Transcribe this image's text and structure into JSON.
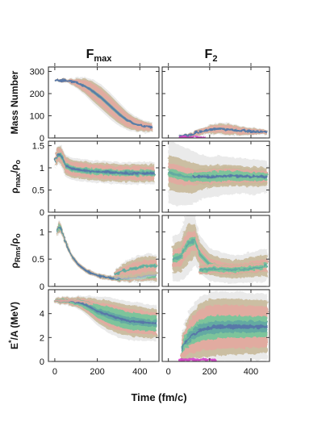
{
  "chart_data": {
    "type": "heatmap",
    "column_titles": [
      "F",
      "F"
    ],
    "column_title_subscripts": [
      "max",
      "2"
    ],
    "xlabel": "Time (fm/c)",
    "x_ticks": [
      "0",
      "200",
      "400"
    ],
    "x_tick_values": [
      0,
      200,
      400
    ],
    "xlim": [
      -30,
      490
    ],
    "grid": false,
    "colors": {
      "low": "#d9d9d9",
      "tan": "#c8b99a",
      "pink": "#e3a9a0",
      "green": "#72c79a",
      "teal": "#62a7a3",
      "blue": "#5872a8",
      "magenta": "#d23fc8",
      "frame": "#222222"
    },
    "rows": [
      {
        "ylabel": "Mass Number",
        "ylabel_parts": [
          {
            "t": "Mass Number",
            "s": ""
          }
        ],
        "y_ticks": [
          "0",
          "100",
          "200",
          "300"
        ],
        "y_tick_values": [
          0,
          100,
          200,
          300
        ],
        "ylim": [
          0,
          320
        ],
        "panels": [
          {
            "column": "Fmax",
            "bands": [
              {
                "x": [
                  0,
                  60,
                  100,
                  140,
                  180,
                  220,
                  260,
                  300,
                  340,
                  380,
                  420,
                  460
                ],
                "y": [
                  260,
                  258,
                  250,
                  235,
                  210,
                  180,
                  145,
                  110,
                  80,
                  62,
                  52,
                  48
                ],
                "w": [
                  4,
                  10,
                  25,
                  40,
                  55,
                  60,
                  60,
                  55,
                  45,
                  35,
                  28,
                  22
                ],
                "layers": [
                  1,
                  1,
                  1,
                  0,
                  0.55,
                  0.25
                ]
              }
            ]
          },
          {
            "column": "F2",
            "bands": [
              {
                "x": [
                  50,
                  100,
                  150,
                  200,
                  250,
                  300,
                  350,
                  400,
                  450,
                  480
                ],
                "y": [
                  8,
                  14,
                  25,
                  38,
                  42,
                  38,
                  32,
                  30,
                  28,
                  28
                ],
                "w": [
                  6,
                  10,
                  16,
                  22,
                  28,
                  28,
                  24,
                  18,
                  14,
                  12
                ],
                "layers": [
                  1,
                  1,
                  1,
                  0.4,
                  0.45,
                  0.35
                ]
              },
              {
                "x": [
                  50,
                  100,
                  140,
                  180
                ],
                "y": [
                  4,
                  5,
                  5,
                  4
                ],
                "w": [
                  3,
                  4,
                  4,
                  3
                ],
                "layers": [
                  0,
                  0,
                  0,
                  0,
                  0,
                  0,
                  1
                ]
              }
            ]
          }
        ]
      },
      {
        "ylabel": "ρmax/ρo",
        "ylabel_parts": [
          {
            "t": "ρ",
            "s": ""
          },
          {
            "t": "max",
            "s": "sub"
          },
          {
            "t": "/ρ",
            "s": ""
          },
          {
            "t": "o",
            "s": "sub"
          }
        ],
        "y_ticks": [
          "0",
          "0.5",
          "1",
          "1.5"
        ],
        "y_tick_values": [
          0,
          0.5,
          1,
          1.5
        ],
        "ylim": [
          0,
          1.6
        ],
        "panels": [
          {
            "column": "Fmax",
            "bands": [
              {
                "x": [
                  0,
                  15,
                  30,
                  50,
                  80,
                  120,
                  180,
                  250,
                  320,
                  400,
                  470
                ],
                "y": [
                  1.15,
                  1.3,
                  1.28,
                  1.05,
                  0.98,
                  0.95,
                  0.92,
                  0.9,
                  0.88,
                  0.88,
                  0.88
                ],
                "w": [
                  0.15,
                  0.2,
                  0.25,
                  0.25,
                  0.25,
                  0.25,
                  0.25,
                  0.25,
                  0.25,
                  0.25,
                  0.25
                ],
                "layers": [
                  1,
                  1,
                  1,
                  0.6,
                  0.6,
                  0.35
                ]
              }
            ]
          },
          {
            "column": "F2",
            "bands": [
              {
                "x": [
                  0,
                  40,
                  80,
                  120,
                  160,
                  200,
                  250,
                  300,
                  350,
                  400,
                  450,
                  480
                ],
                "y": [
                  0.9,
                  0.85,
                  0.8,
                  0.78,
                  0.78,
                  0.8,
                  0.82,
                  0.82,
                  0.82,
                  0.8,
                  0.8,
                  0.8
                ],
                "w": [
                  0.7,
                  0.7,
                  0.65,
                  0.6,
                  0.5,
                  0.45,
                  0.45,
                  0.42,
                  0.4,
                  0.4,
                  0.38,
                  0.35
                ],
                "layers": [
                  1,
                  0.7,
                  0.5,
                  0.3,
                  0.15,
                  0
                ]
              },
              {
                "x": [
                  120,
                  200,
                  300,
                  400,
                  480
                ],
                "y": [
                  0.8,
                  0.8,
                  0.82,
                  0.8,
                  0.8
                ],
                "w": [
                  0.2,
                  0.25,
                  0.25,
                  0.22,
                  0.2
                ],
                "layers": [
                  0,
                  1,
                  1,
                  1,
                  0.5,
                  0.2
                ]
              }
            ]
          }
        ]
      },
      {
        "ylabel": "ρRms/ρo",
        "ylabel_parts": [
          {
            "t": "ρ",
            "s": ""
          },
          {
            "t": "Rms",
            "s": "sub"
          },
          {
            "t": "/ρ",
            "s": ""
          },
          {
            "t": "o",
            "s": "sub"
          }
        ],
        "y_ticks": [
          "0",
          "0.5",
          "1"
        ],
        "y_tick_values": [
          0,
          0.5,
          1
        ],
        "ylim": [
          0,
          1.3
        ],
        "panels": [
          {
            "column": "Fmax",
            "bands": [
              {
                "x": [
                  10,
                  20,
                  30,
                  45,
                  60,
                  80,
                  110,
                  150,
                  200,
                  250,
                  300,
                  350,
                  400,
                  450,
                  480
                ],
                "y": [
                  1.0,
                  1.1,
                  1.05,
                  0.88,
                  0.72,
                  0.55,
                  0.4,
                  0.28,
                  0.2,
                  0.16,
                  0.14,
                  0.15,
                  0.18,
                  0.2,
                  0.2
                ],
                "w": [
                  0.1,
                  0.12,
                  0.1,
                  0.08,
                  0.07,
                  0.06,
                  0.05,
                  0.05,
                  0.05,
                  0.05,
                  0.06,
                  0.08,
                  0.1,
                  0.12,
                  0.12
                ],
                "layers": [
                  1,
                  1,
                  1,
                  1,
                  0.9,
                  0.85
                ]
              },
              {
                "x": [
                  280,
                  320,
                  360,
                  400,
                  440,
                  480
                ],
                "y": [
                  0.22,
                  0.28,
                  0.32,
                  0.35,
                  0.38,
                  0.38
                ],
                "w": [
                  0.08,
                  0.15,
                  0.2,
                  0.22,
                  0.22,
                  0.2
                ],
                "layers": [
                  1,
                  1,
                  0.8,
                  0.3,
                  0.2,
                  0
                ]
              }
            ]
          },
          {
            "column": "F2",
            "bands": [
              {
                "x": [
                  20,
                  60,
                  80,
                  100,
                  130,
                  150,
                  200,
                  250,
                  300,
                  350,
                  400,
                  450,
                  480
                ],
                "y": [
                  0.5,
                  0.55,
                  0.7,
                  0.8,
                  0.85,
                  0.6,
                  0.4,
                  0.35,
                  0.32,
                  0.32,
                  0.35,
                  0.38,
                  0.38
                ],
                "w": [
                  0.4,
                  0.45,
                  0.55,
                  0.55,
                  0.45,
                  0.35,
                  0.3,
                  0.28,
                  0.26,
                  0.26,
                  0.28,
                  0.3,
                  0.3
                ],
                "layers": [
                  1,
                  0.8,
                  0.6,
                  0.35,
                  0.2,
                  0
                ]
              },
              {
                "x": [
                  150,
                  220,
                  300,
                  380,
                  460
                ],
                "y": [
                  0.3,
                  0.32,
                  0.3,
                  0.32,
                  0.35
                ],
                "w": [
                  0.1,
                  0.12,
                  0.12,
                  0.12,
                  0.12
                ],
                "layers": [
                  0,
                  1,
                  1,
                  0.8,
                  0.2,
                  0
                ]
              }
            ]
          }
        ]
      },
      {
        "ylabel": "E*/A (MeV)",
        "ylabel_parts": [
          {
            "t": "E",
            "s": ""
          },
          {
            "t": "*",
            "s": "sup"
          },
          {
            "t": "/A (MeV)",
            "s": ""
          }
        ],
        "y_ticks": [
          "0",
          "2",
          "4"
        ],
        "y_tick_values": [
          0,
          2,
          4
        ],
        "ylim": [
          0,
          6
        ],
        "panels": [
          {
            "column": "Fmax",
            "bands": [
              {
                "x": [
                  0,
                  40,
                  80,
                  120,
                  160,
                  200,
                  250,
                  300,
                  350,
                  400,
                  450,
                  480
                ],
                "y": [
                  5.1,
                  5.1,
                  5.0,
                  4.9,
                  4.6,
                  4.2,
                  3.9,
                  3.6,
                  3.4,
                  3.3,
                  3.2,
                  3.2
                ],
                "w": [
                  0.3,
                  0.35,
                  0.4,
                  0.6,
                  0.9,
                  1.2,
                  1.5,
                  1.6,
                  1.6,
                  1.6,
                  1.5,
                  1.5
                ],
                "layers": [
                  1,
                  1,
                  1,
                  1,
                  0.7,
                  0.45
                ]
              },
              {
                "x": [
                  0,
                  60,
                  120,
                  180
                ],
                "y": [
                  5.1,
                  5.1,
                  5.0,
                  4.8
                ],
                "w": [
                  0.08,
                  0.1,
                  0.1,
                  0.1
                ],
                "layers": [
                  0,
                  0,
                  0,
                  0,
                  0,
                  0,
                  0,
                  1
                ]
              }
            ]
          },
          {
            "column": "F2",
            "bands": [
              {
                "x": [
                  60,
                  100,
                  150,
                  200,
                  250,
                  300,
                  350,
                  400,
                  450,
                  480
                ],
                "y": [
                  1.0,
                  2.0,
                  2.6,
                  2.8,
                  2.9,
                  2.9,
                  2.9,
                  2.9,
                  2.9,
                  2.9
                ],
                "w": [
                  1.2,
                  2.2,
                  2.8,
                  3.0,
                  3.0,
                  2.9,
                  2.9,
                  2.8,
                  2.8,
                  2.7
                ],
                "layers": [
                  1,
                  1,
                  1,
                  0.7,
                  0.6,
                  0.4
                ]
              },
              {
                "x": [
                  50,
                  100,
                  150,
                  200,
                  230
                ],
                "y": [
                  0.12,
                  0.15,
                  0.15,
                  0.15,
                  0.12
                ],
                "w": [
                  0.1,
                  0.12,
                  0.12,
                  0.12,
                  0.08
                ],
                "layers": [
                  0,
                  0,
                  0,
                  0,
                  0,
                  0,
                  1
                ]
              }
            ]
          }
        ]
      }
    ]
  }
}
